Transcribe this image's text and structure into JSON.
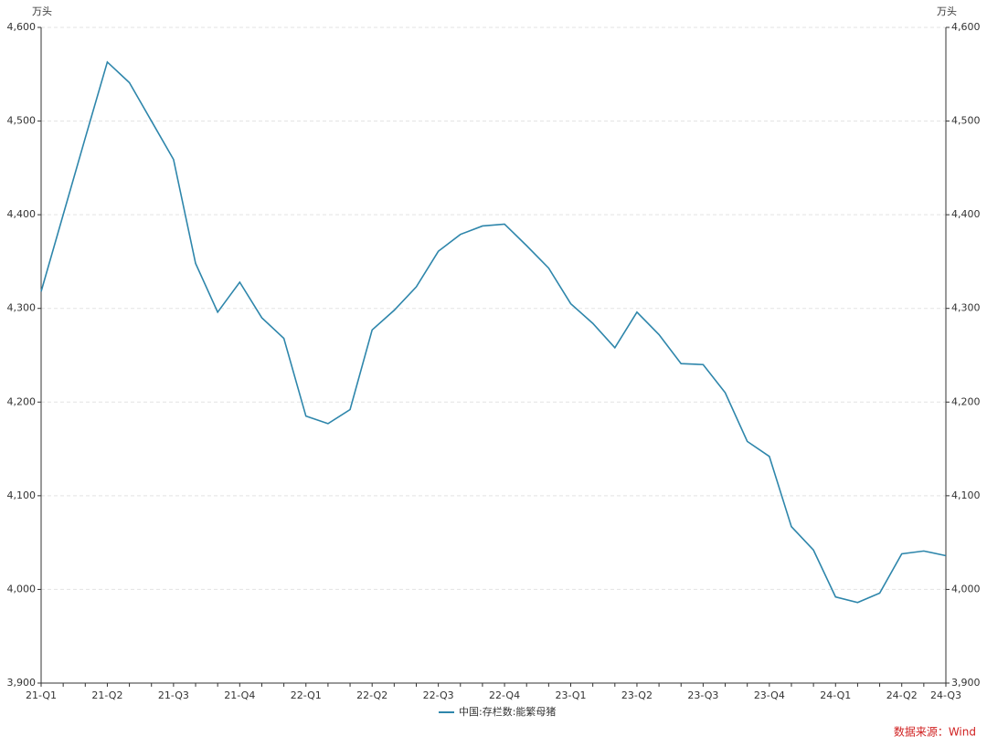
{
  "chart_data": {
    "type": "line",
    "y_unit": "万头",
    "y2_unit": "万头",
    "categories": [
      "21-Q1",
      null,
      null,
      "21-Q2",
      null,
      null,
      "21-Q3",
      null,
      null,
      "21-Q4",
      null,
      null,
      "22-Q1",
      null,
      null,
      "22-Q2",
      null,
      null,
      "22-Q3",
      null,
      null,
      "22-Q4",
      null,
      null,
      "23-Q1",
      null,
      null,
      "23-Q2",
      null,
      null,
      "23-Q3",
      null,
      null,
      "23-Q4",
      null,
      null,
      "24-Q1",
      null,
      null,
      "24-Q2",
      null,
      "24-Q3"
    ],
    "series": [
      {
        "name": "中国:存栏数:能繁母猪",
        "color": "#2e86ab",
        "values": [
          4318,
          4400,
          4482,
          4563,
          4541,
          4500,
          4459,
          4348,
          4296,
          4328,
          4290,
          4268,
          4185,
          4177,
          4192,
          4277,
          4298,
          4323,
          4361,
          4379,
          4388,
          4390,
          4367,
          4343,
          4305,
          4284,
          4258,
          4296,
          4272,
          4241,
          4240,
          4210,
          4158,
          4142,
          4067,
          4042,
          3992,
          3986,
          3996,
          4038,
          4041,
          4036
        ]
      }
    ],
    "ylim": [
      3900,
      4600
    ],
    "yticks": [
      {
        "value": 3900,
        "label": "3,900"
      },
      {
        "value": 4000,
        "label": "4,000"
      },
      {
        "value": 4100,
        "label": "4,100"
      },
      {
        "value": 4200,
        "label": "4,200"
      },
      {
        "value": 4300,
        "label": "4,300"
      },
      {
        "value": 4400,
        "label": "4,400"
      },
      {
        "value": 4500,
        "label": "4,500"
      },
      {
        "value": 4600,
        "label": "4,600"
      }
    ],
    "y2lim": [
      3900,
      4600
    ],
    "y2ticks": [
      {
        "value": 3900,
        "label": "3,900"
      },
      {
        "value": 4000,
        "label": "4,000"
      },
      {
        "value": 4100,
        "label": "4,100"
      },
      {
        "value": 4200,
        "label": "4,200"
      },
      {
        "value": 4300,
        "label": "4,300"
      },
      {
        "value": 4400,
        "label": "4,400"
      },
      {
        "value": 4500,
        "label": "4,500"
      },
      {
        "value": 4600,
        "label": "4,600"
      }
    ],
    "grid": true,
    "source": "数据来源：Wind"
  }
}
